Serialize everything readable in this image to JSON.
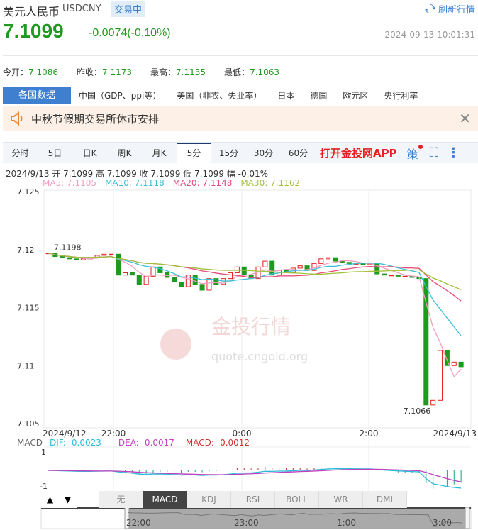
{
  "header": {
    "title": "美元人民币",
    "code": "USDCNY",
    "status": "交易中",
    "refresh": "刷新行情"
  },
  "quote": {
    "price": "7.1099",
    "change": "-0.0074(-0.10%)",
    "time": "2024-09-13 10:01:31"
  },
  "stats": [
    {
      "label": "今开：",
      "value": "7.1086"
    },
    {
      "label": "昨收：",
      "value": "7.1173"
    },
    {
      "label": "最高：",
      "value": "7.1135"
    },
    {
      "label": "最低：",
      "value": "7.1063"
    }
  ],
  "country_tabs": [
    "各国数据",
    "中国（GDP、ppi等）",
    "美国（非农、失业率）",
    "日本",
    "德国",
    "欧元区",
    "央行利率"
  ],
  "notice": {
    "text": "中秋节假期交易所休市安排"
  },
  "period_tabs": [
    "分时",
    "5日",
    "日K",
    "周K",
    "月K",
    "5分",
    "15分",
    "30分",
    "60分"
  ],
  "active_period": "5分",
  "app_link": "打开金投网APP",
  "strategy": "策",
  "candle_info": "2024/9/13  开 7.1099  高 7.1099  收 7.1099  低 7.1099  幅 -0.01%",
  "ma": [
    {
      "label": "MA5: 7.1105",
      "color": "#f29ec0"
    },
    {
      "label": "MA10: 7.1118",
      "color": "#3bbfd6"
    },
    {
      "label": "MA20: 7.1148",
      "color": "#e8497a"
    },
    {
      "label": "MA30: 7.1162",
      "color": "#a3c23a"
    }
  ],
  "watermark": {
    "brand": "金投行情",
    "url": "quote.cngold.org"
  },
  "chart_data": {
    "type": "candlestick",
    "ylim": [
      7.105,
      7.125
    ],
    "yticks": [
      "7.125",
      "7.12",
      "7.115",
      "7.11",
      "7.105"
    ],
    "xticks": [
      "2024/9/12",
      "22:00",
      "0:00",
      "2:00",
      "2024/9/13"
    ],
    "annotations": {
      "max": "7.1198",
      "min": "7.1066"
    },
    "closes": [
      7.1197,
      7.1194,
      7.1193,
      7.1192,
      7.1191,
      7.1192,
      7.1193,
      7.1195,
      7.1196,
      7.1196,
      7.1178,
      7.118,
      7.1178,
      7.117,
      7.1177,
      7.1185,
      7.118,
      7.1176,
      7.1172,
      7.1168,
      7.1178,
      7.117,
      7.1165,
      7.1175,
      7.117,
      7.1175,
      7.118,
      7.1185,
      7.1178,
      7.1175,
      7.1185,
      7.119,
      7.1178,
      7.1182,
      7.118,
      7.1184,
      7.1186,
      7.1182,
      7.1188,
      7.1192,
      7.1193,
      7.119,
      7.1189,
      7.1188,
      7.1188,
      7.1187,
      7.1188,
      7.1179,
      7.1178,
      7.1178,
      7.1177,
      7.1177,
      7.1176,
      7.1175,
      7.1066,
      7.107,
      7.1113,
      7.11,
      7.1103,
      7.1099
    ],
    "up_color": "#e52020",
    "down_color": "#1f9a1f"
  },
  "macd": {
    "label": "MACD",
    "dif": "DIF: -0.0023",
    "dea": "DEA: -0.0017",
    "macd": "MACD: -0.0012",
    "ticks": [
      "1",
      "-1"
    ]
  },
  "indicator_tabs": [
    "无",
    "MACD",
    "KDJ",
    "RSI",
    "BOLL",
    "WR",
    "DMI"
  ],
  "active_indicator": "MACD",
  "navigator": {
    "ticks": [
      "22:00",
      "23:00",
      "1:00",
      "3:00"
    ]
  }
}
